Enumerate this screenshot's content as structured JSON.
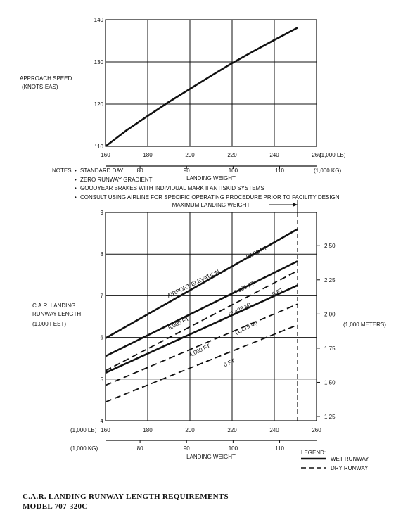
{
  "notes": {
    "heading": "NOTES:",
    "items": [
      "STANDARD DAY",
      "ZERO RUNWAY GRADIENT",
      "GOODYEAR BRAKES WITH INDIVIDUAL MARK II ANTISKID SYSTEMS",
      "CONSULT USING AIRLINE FOR SPECIFIC OPERATING PROCEDURE PRIOR TO FACILITY DESIGN"
    ]
  },
  "caption": {
    "line1": "C.A.R. LANDING RUNWAY LENGTH REQUIREMENTS",
    "line2": "MODEL 707-320C"
  },
  "legend": {
    "title": "LEGEND:",
    "wet": "WET RUNWAY",
    "dry": "DRY RUNWAY"
  },
  "chart_data": [
    {
      "type": "line",
      "ylabel_lines": [
        "APPROACH SPEED",
        "(KNOTS-EAS)"
      ],
      "xlim": [
        160,
        260
      ],
      "ylim": [
        110,
        140
      ],
      "x_ticks": [
        160,
        180,
        200,
        220,
        240,
        260
      ],
      "x_unit": "(1,000 LB)",
      "y_ticks": [
        110,
        120,
        130,
        140
      ],
      "kg_ticks": [
        80,
        90,
        100,
        110
      ],
      "kg_unit": "(1,000 KG)",
      "xlabel2": "LANDING WEIGHT",
      "grid": true,
      "series": [
        {
          "x": [
            160,
            170,
            180,
            190,
            200,
            210,
            220,
            230,
            240,
            251
          ],
          "y": [
            110,
            113.8,
            117.2,
            120.5,
            123.6,
            126.7,
            129.7,
            132.5,
            135.2,
            138.1
          ]
        }
      ]
    },
    {
      "type": "line",
      "ylabel_lines": [
        "C.A.R. LANDING",
        "RUNWAY LENGTH",
        "(1,000 FEET)"
      ],
      "y2label": "(1,000 METERS)",
      "xlim": [
        160,
        260
      ],
      "ylim": [
        4,
        9
      ],
      "x_ticks": [
        160,
        180,
        200,
        220,
        240,
        260
      ],
      "x_unit": "(1,000 LB)",
      "y_ticks": [
        4,
        5,
        6,
        7,
        8,
        9
      ],
      "y2_ticks": [
        "1.25",
        "1.50",
        "1.75",
        "2.00",
        "2.25",
        "2.50"
      ],
      "kg_ticks": [
        80,
        90,
        100,
        110
      ],
      "kg_unit": "(1,000 KG)",
      "xlabel2": "LANDING WEIGHT",
      "max_weight_label": "MAXIMUM LANDING WEIGHT",
      "max_weight_x": 251,
      "grid": true,
      "series": [
        {
          "runway": "wet",
          "x": [
            160,
            251
          ],
          "y": [
            5.98,
            8.6
          ]
        },
        {
          "runway": "wet",
          "x": [
            160,
            251
          ],
          "y": [
            5.55,
            7.83
          ]
        },
        {
          "runway": "wet",
          "x": [
            160,
            251
          ],
          "y": [
            5.15,
            7.25
          ]
        },
        {
          "runway": "dry",
          "x": [
            160,
            251
          ],
          "y": [
            5.2,
            7.6
          ]
        },
        {
          "runway": "dry",
          "x": [
            160,
            251
          ],
          "y": [
            4.85,
            6.8
          ]
        },
        {
          "runway": "dry",
          "x": [
            160,
            251
          ],
          "y": [
            4.45,
            6.3
          ]
        }
      ],
      "annotations": [
        {
          "text": "AIRPORT ELEVATION",
          "x": 202,
          "y": 7.25,
          "angle": -26
        },
        {
          "text": "8,000 FT",
          "x": 232,
          "y": 8.0,
          "angle": -26
        },
        {
          "text": "4,000 FT",
          "x": 226,
          "y": 7.15,
          "angle": -26
        },
        {
          "text": "0 FT",
          "x": 242,
          "y": 7.05,
          "angle": -26
        },
        {
          "text": "(2,438 M)",
          "x": 224,
          "y": 6.63,
          "angle": -26
        },
        {
          "text": "8,000 FT",
          "x": 195,
          "y": 6.3,
          "angle": -26
        },
        {
          "text": "(1,219 M)",
          "x": 227,
          "y": 6.2,
          "angle": -26
        },
        {
          "text": "4,000 FT",
          "x": 205,
          "y": 5.65,
          "angle": -26
        },
        {
          "text": "0 FT",
          "x": 219,
          "y": 5.35,
          "angle": -26
        }
      ]
    }
  ]
}
